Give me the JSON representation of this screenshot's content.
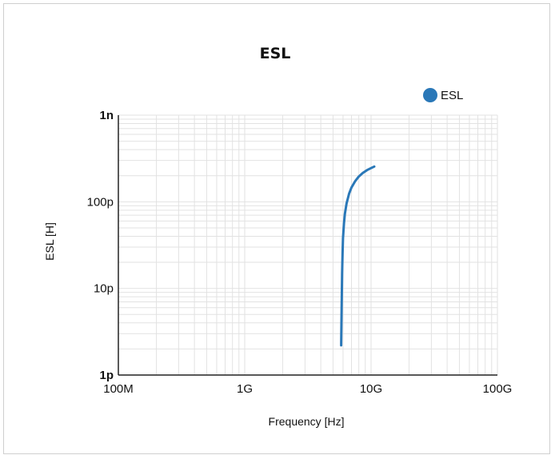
{
  "chart_data": {
    "type": "line",
    "title": "ESL",
    "xlabel": "Frequency [Hz]",
    "ylabel": "ESL [H]",
    "x_scale": "log",
    "y_scale": "log",
    "xlim": [
      100000000,
      100000000000
    ],
    "ylim": [
      1e-12,
      1e-09
    ],
    "x_ticks": [
      {
        "value": 100000000,
        "label": "100M"
      },
      {
        "value": 1000000000,
        "label": "1G"
      },
      {
        "value": 10000000000,
        "label": "10G"
      },
      {
        "value": 100000000000,
        "label": "100G"
      }
    ],
    "y_ticks": [
      {
        "value": 1e-12,
        "label": "1p",
        "bold": true
      },
      {
        "value": 1e-11,
        "label": "10p",
        "bold": false
      },
      {
        "value": 1e-10,
        "label": "100p",
        "bold": false
      },
      {
        "value": 1e-09,
        "label": "1n",
        "bold": true
      }
    ],
    "grid": true,
    "legend": "top-right",
    "series": [
      {
        "name": "ESL",
        "color": "#2a78b8",
        "x": [
          5800000000,
          5850000000,
          5900000000,
          5950000000,
          6000000000,
          6100000000,
          6200000000,
          6400000000,
          6700000000,
          7000000000,
          7500000000,
          8000000000,
          8600000000,
          9300000000,
          10000000000,
          10600000000
        ],
        "y": [
          2.2e-12,
          6e-12,
          1.5e-11,
          2.6e-11,
          3.8e-11,
          5.6e-11,
          7.2e-11,
          9.6e-11,
          1.24e-10,
          1.46e-10,
          1.74e-10,
          1.96e-10,
          2.15e-10,
          2.32e-10,
          2.45e-10,
          2.55e-10
        ]
      }
    ]
  }
}
